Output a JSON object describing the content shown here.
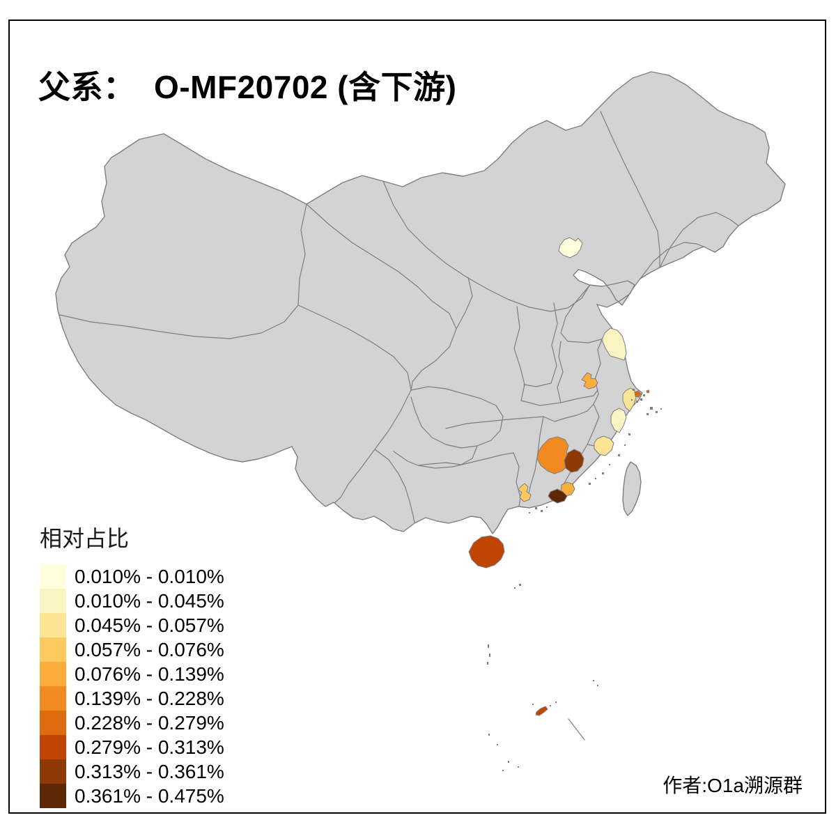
{
  "title": "父系：  O-MF20702 (含下游)",
  "attribution": "作者:O1a溯源群",
  "legend": {
    "title": "相对占比",
    "classes": [
      {
        "label": "0.010% - 0.010%",
        "color": "#FFFFDE"
      },
      {
        "label": "0.010% - 0.045%",
        "color": "#FAF3C2"
      },
      {
        "label": "0.045% - 0.057%",
        "color": "#FBE494"
      },
      {
        "label": "0.057% - 0.076%",
        "color": "#FDCA60"
      },
      {
        "label": "0.076% - 0.139%",
        "color": "#FBAE3C"
      },
      {
        "label": "0.139% - 0.228%",
        "color": "#F28A22"
      },
      {
        "label": "0.228% - 0.279%",
        "color": "#E06A10"
      },
      {
        "label": "0.279% - 0.313%",
        "color": "#C04505"
      },
      {
        "label": "0.313% - 0.361%",
        "color": "#8E3A06"
      },
      {
        "label": "0.361% - 0.475%",
        "color": "#5E2706"
      }
    ]
  },
  "map": {
    "land_fill": "#D3D3D3",
    "border_color": "#7E7E7E",
    "frame_color": "#000000",
    "background": "#FFFFFF"
  },
  "chart_data": {
    "type": "choropleth",
    "legend_title": "相对占比",
    "regions": [
      {
        "id": "beijing-area",
        "class_index": 0
      },
      {
        "id": "northern-jiangsu",
        "class_index": 1
      },
      {
        "id": "suzhou-area",
        "class_index": 2
      },
      {
        "id": "shanghai",
        "class_index": 6
      },
      {
        "id": "shanghai-islet",
        "class_index": 6
      },
      {
        "id": "hefei-area",
        "class_index": 4
      },
      {
        "id": "eastern-zhejiang",
        "class_index": 1
      },
      {
        "id": "fuzhou-area",
        "class_index": 2
      },
      {
        "id": "southern-jiangxi",
        "class_index": 5
      },
      {
        "id": "western-fujian",
        "class_index": 8
      },
      {
        "id": "western-guangdong",
        "class_index": 3
      },
      {
        "id": "chaozhou-area",
        "class_index": 4
      },
      {
        "id": "chaoshan-area",
        "class_index": 9
      },
      {
        "id": "hainan",
        "class_index": 7
      },
      {
        "id": "south-china-sea-islet",
        "class_index": 7
      }
    ]
  }
}
